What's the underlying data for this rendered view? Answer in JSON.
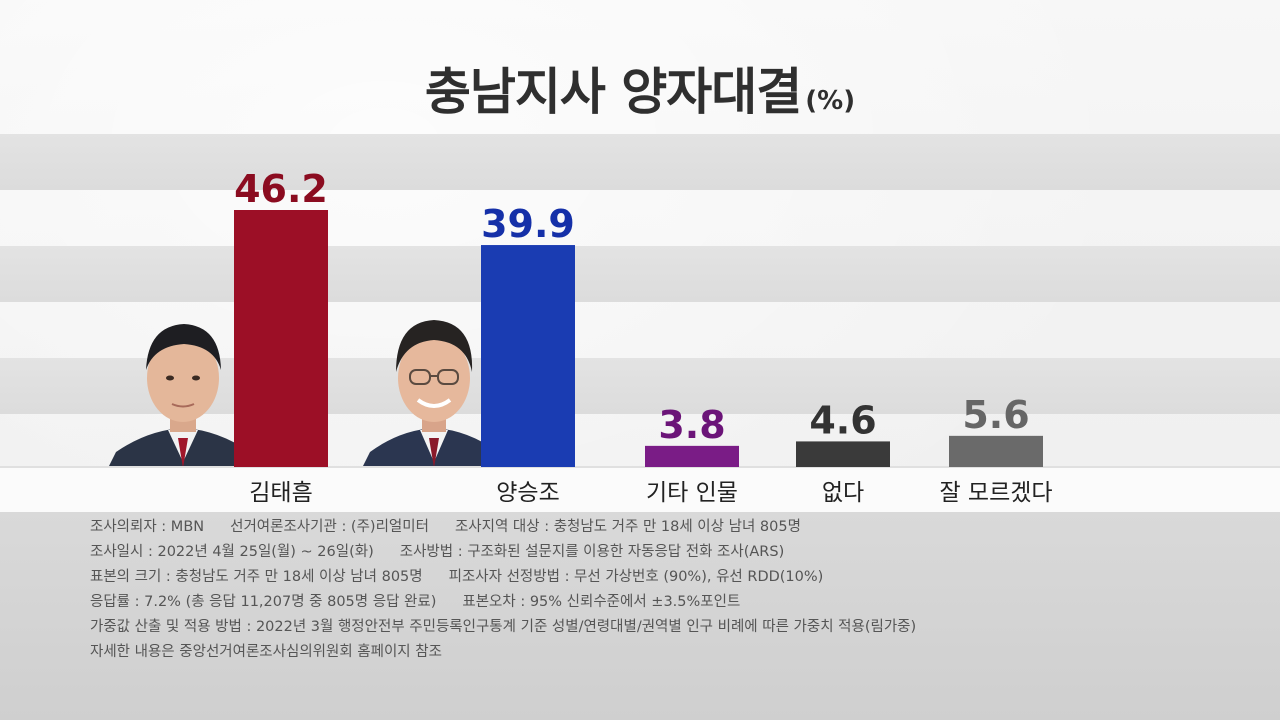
{
  "title": "충남지사 양자대결",
  "unit": "(%)",
  "chart_data": {
    "type": "bar",
    "title": "충남지사 양자대결",
    "unit": "(%)",
    "categories": [
      "김태흠",
      "양승조",
      "기타 인물",
      "없다",
      "잘 모르겠다"
    ],
    "values": [
      46.2,
      39.9,
      3.8,
      4.6,
      5.6
    ],
    "value_labels": [
      "46.2",
      "39.9",
      "3.8",
      "4.6",
      "5.6"
    ],
    "colors": [
      "#9c0f26",
      "#1a3cb2",
      "#7a1c86",
      "#3a3a3a",
      "#6a6a6a"
    ],
    "label_colors": [
      "#8b0c20",
      "#1530a8",
      "#6b1478",
      "#333333",
      "#666666"
    ],
    "ylim": [
      0,
      48
    ],
    "grid": false,
    "legend": "none"
  },
  "candidates": [
    {
      "photo": "person-photo-icon"
    },
    {
      "photo": "person-photo-icon"
    }
  ],
  "notes": [
    [
      "조사의뢰자 : MBN",
      "선거여론조사기관 : (주)리얼미터",
      "조사지역 대상 : 충청남도 거주 만 18세 이상 남녀 805명"
    ],
    [
      "조사일시 : 2022년 4월 25일(월) ~ 26일(화)",
      "조사방법 : 구조화된 설문지를 이용한 자동응답 전화 조사(ARS)"
    ],
    [
      "표본의 크기 : 충청남도 거주 만 18세 이상 남녀 805명",
      "피조사자 선정방법 : 무선 가상번호 (90%), 유선 RDD(10%)"
    ],
    [
      "응답률 : 7.2% (총 응답 11,207명 중 805명 응답 완료)",
      "표본오차 : 95% 신뢰수준에서 ±3.5%포인트"
    ],
    [
      "가중값 산출 및 적용 방법 : 2022년 3월 행정안전부 주민등록인구통계 기준 성별/연령대별/권역별 인구 비례에 따른  가중치 적용(림가중)"
    ],
    [
      "자세한 내용은 중앙선거여론조사심의위원회 홈페이지 참조"
    ]
  ]
}
